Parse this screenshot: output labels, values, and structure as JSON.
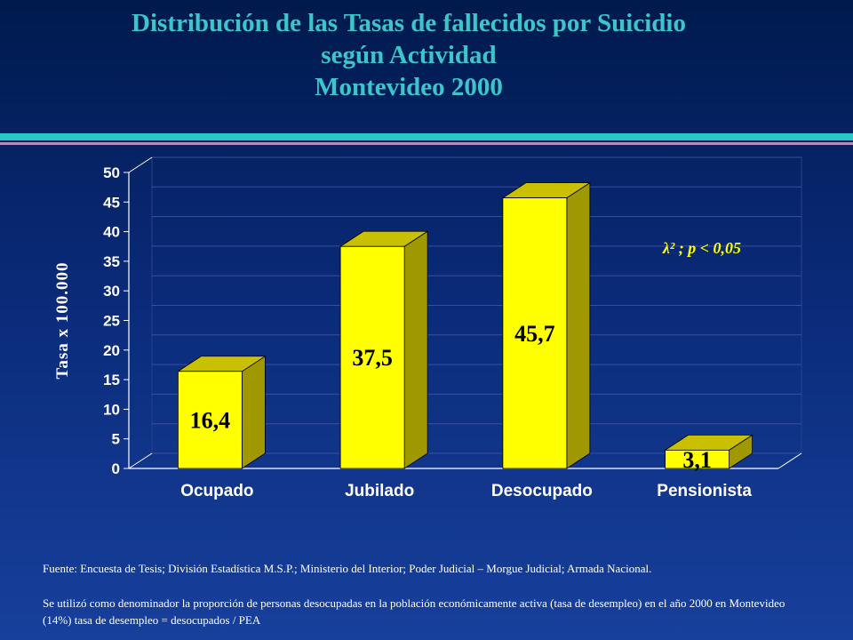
{
  "title": {
    "line1": "Distribución de las Tasas de fallecidos por Suicidio",
    "line2": "según Actividad",
    "line3": "Montevideo 2000"
  },
  "colors": {
    "title": "#3cc6cc",
    "bar_front": "#ffff00",
    "bar_side": "#a09800",
    "bar_top": "#c8c000",
    "axis_text": "#ffffff",
    "annotation": "#ffff00"
  },
  "chart_data": {
    "type": "bar",
    "categories": [
      "Ocupado",
      "Jubilado",
      "Desocupado",
      "Pensionista"
    ],
    "values": [
      16.4,
      37.5,
      45.7,
      3.1
    ],
    "data_labels": [
      "16,4",
      "37,5",
      "45,7",
      "3,1"
    ],
    "title": "",
    "xlabel": "",
    "ylabel": "Tasa x 100.000",
    "ylim": [
      0,
      50
    ],
    "yticks": [
      "0",
      "5",
      "10",
      "15",
      "20",
      "25",
      "30",
      "35",
      "40",
      "45",
      "50"
    ],
    "annotation": "λ² ;  p < 0,05",
    "grid": true
  },
  "notes": {
    "source": "Fuente: Encuesta de Tesis; División Estadística M.S.P.; Ministerio del Interior; Poder Judicial – Morgue Judicial; Armada Nacional.",
    "method": "Se utilizó como denominador la proporción de personas desocupadas en la población económicamente activa (tasa de desempleo) en el año 2000 en Montevideo (14%) tasa de desempleo = desocupados  / PEA"
  }
}
